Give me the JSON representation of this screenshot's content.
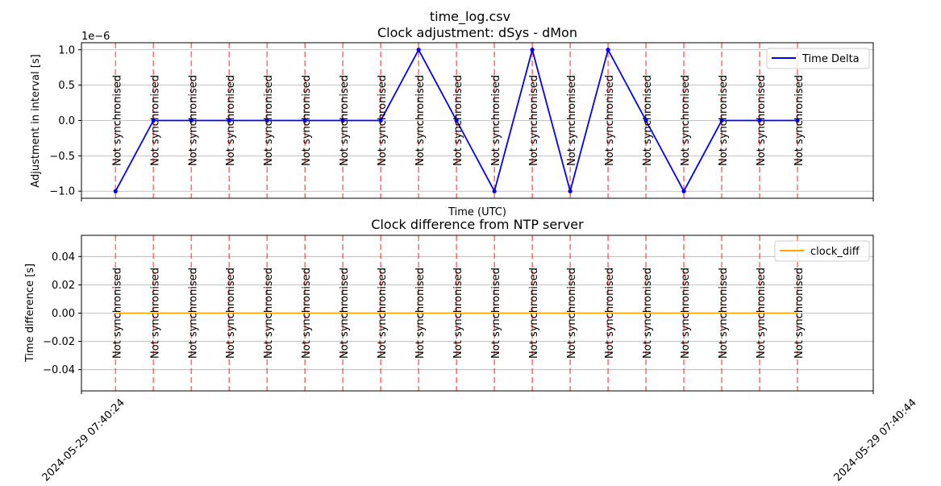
{
  "figure_title": "time_log.csv",
  "chart_data": [
    {
      "type": "line",
      "title": "Clock adjustment: dSys - dMon",
      "xlabel": "Time (UTC)",
      "ylabel": "Adjustment in interval [s]",
      "y_offset_label": "1e−6",
      "ylim": [
        -1.1,
        1.1
      ],
      "yticks": [
        -1.0,
        -0.5,
        0.0,
        0.5,
        1.0
      ],
      "ytick_labels": [
        "−1.0",
        "−0.5",
        "0.0",
        "0.5",
        "1.0"
      ],
      "y_scale": 1e-06,
      "grid": "horizontal",
      "legend_position": "top-right",
      "series": [
        {
          "name": "Time Delta",
          "color": "#0000ff",
          "values": [
            -1e-06,
            0,
            0,
            0,
            0,
            0,
            0,
            0,
            1e-06,
            0,
            -1e-06,
            1e-06,
            -1e-06,
            1e-06,
            0,
            -1e-06,
            0,
            0,
            0
          ]
        }
      ],
      "annotation_text": "Not synchronised",
      "annotation_color": "#ff0000"
    },
    {
      "type": "line",
      "title": "Clock difference from NTP server",
      "xlabel": "",
      "ylabel": "Time difference [s]",
      "ylim": [
        -0.055,
        0.055
      ],
      "yticks": [
        -0.04,
        -0.02,
        0.0,
        0.02,
        0.04
      ],
      "ytick_labels": [
        "−0.04",
        "−0.02",
        "0.00",
        "0.02",
        "0.04"
      ],
      "grid": "horizontal",
      "legend_position": "top-right",
      "series": [
        {
          "name": "clock_diff",
          "color": "#ffa500",
          "values": [
            0,
            0,
            0,
            0,
            0,
            0,
            0,
            0,
            0,
            0,
            0,
            0,
            0,
            0,
            0,
            0,
            0,
            0,
            0
          ]
        }
      ],
      "annotation_text": "Not synchronised",
      "annotation_color": "#ff0000"
    }
  ],
  "x_axis": {
    "type": "time",
    "times": [
      "2024-05-29 07:40:24",
      "2024-05-29 07:40:25",
      "2024-05-29 07:40:26",
      "2024-05-29 07:40:27",
      "2024-05-29 07:40:28",
      "2024-05-29 07:40:29",
      "2024-05-29 07:40:30",
      "2024-05-29 07:40:31",
      "2024-05-29 07:40:32",
      "2024-05-29 07:40:33",
      "2024-05-29 07:40:34",
      "2024-05-29 07:40:35",
      "2024-05-29 07:40:36",
      "2024-05-29 07:40:37",
      "2024-05-29 07:40:38",
      "2024-05-29 07:40:39",
      "2024-05-29 07:40:40",
      "2024-05-29 07:40:41",
      "2024-05-29 07:40:42"
    ],
    "xlim": [
      "2024-05-29 07:40:23.1",
      "2024-05-29 07:40:44"
    ],
    "tick_labels": [
      "2024-05-29 07:40:24",
      "2024-05-29 07:40:44"
    ]
  }
}
